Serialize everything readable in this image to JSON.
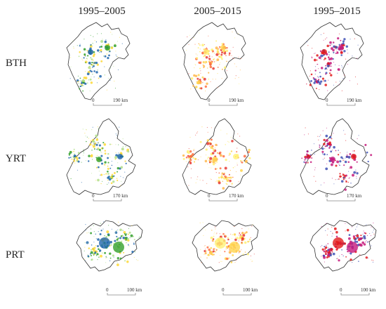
{
  "columns": [
    "1995–2005",
    "2005–2015",
    "1995–2015"
  ],
  "rows": [
    {
      "label": "BTH",
      "scale": {
        "zero": "0",
        "dist": "190 km"
      }
    },
    {
      "label": "YRT",
      "scale": {
        "zero": "0",
        "dist": "170 km"
      }
    },
    {
      "label": "PRT",
      "scale": {
        "zero": "0",
        "dist": "100 km"
      }
    }
  ],
  "colors": {
    "period_1995_2005": [
      "#2166ac",
      "#33a02c",
      "#b2df8a",
      "#fdd835"
    ],
    "period_2005_2015": [
      "#fff176",
      "#ffd54f",
      "#ffb74d",
      "#ff7043",
      "#e53935"
    ],
    "period_1995_2015": [
      "#e31a1c",
      "#c51b7d",
      "#3f51b5"
    ]
  }
}
